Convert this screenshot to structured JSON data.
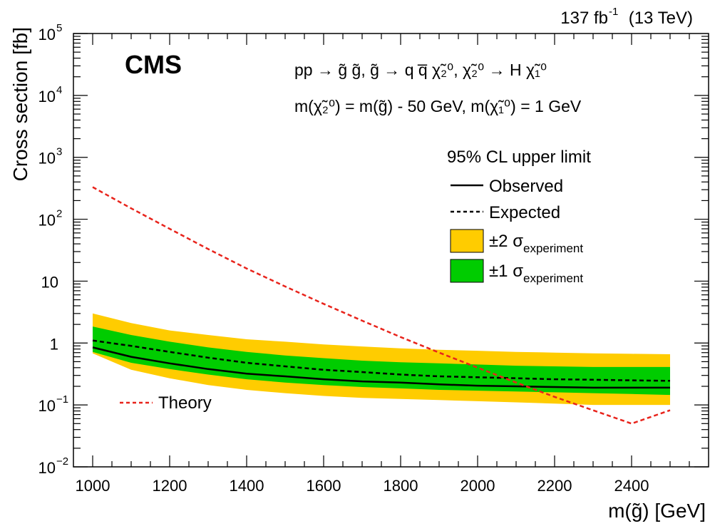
{
  "chart_data": {
    "type": "line",
    "lumi_label": "137 fb",
    "lumi_exponent": "-1",
    "energy_label": "(13 TeV)",
    "experiment_label": "CMS",
    "process_line1": "pp → g̃ g̃,  g̃ → q q̅ χ̃₂⁰,  χ̃₂⁰ → H χ̃₁⁰",
    "process_line2": "m(χ̃₂⁰) = m(g̃) - 50 GeV, m(χ̃₁⁰) = 1 GeV",
    "xlabel": "m(g̃) [GeV]",
    "ylabel": "Cross section [fb]",
    "xlim": [
      950,
      2600
    ],
    "ylim": [
      0.01,
      100000
    ],
    "yscale": "log",
    "grid": false,
    "x_ticks": [
      1000,
      1200,
      1400,
      1600,
      1800,
      2000,
      2200,
      2400
    ],
    "y_ticks": [
      {
        "value": 0.01,
        "base": "10",
        "exp": "−2"
      },
      {
        "value": 0.1,
        "base": "10",
        "exp": "−1"
      },
      {
        "value": 1,
        "base": "1",
        "exp": ""
      },
      {
        "value": 10,
        "base": "10",
        "exp": ""
      },
      {
        "value": 100,
        "base": "10",
        "exp": "2"
      },
      {
        "value": 1000,
        "base": "10",
        "exp": "3"
      },
      {
        "value": 10000,
        "base": "10",
        "exp": "4"
      },
      {
        "value": 100000,
        "base": "10",
        "exp": "5"
      }
    ],
    "x": [
      1000,
      1100,
      1200,
      1300,
      1400,
      1500,
      1600,
      1700,
      1800,
      1900,
      2000,
      2100,
      2200,
      2300,
      2400,
      2500
    ],
    "series": [
      {
        "name": "Observed",
        "style": "solid",
        "color": "#000000",
        "values": [
          0.85,
          0.6,
          0.47,
          0.38,
          0.32,
          0.29,
          0.26,
          0.24,
          0.23,
          0.215,
          0.205,
          0.2,
          0.195,
          0.19,
          0.19,
          0.19
        ]
      },
      {
        "name": "Expected",
        "style": "dashed",
        "color": "#000000",
        "values": [
          1.1,
          0.9,
          0.72,
          0.58,
          0.48,
          0.42,
          0.37,
          0.34,
          0.31,
          0.29,
          0.28,
          0.27,
          0.26,
          0.255,
          0.25,
          0.245
        ]
      },
      {
        "name": "Theory",
        "style": "dashed",
        "color": "#e8241c",
        "values": [
          330,
          150,
          70,
          33,
          16,
          8.2,
          4.3,
          2.3,
          1.25,
          0.7,
          0.4,
          0.23,
          0.135,
          0.082,
          0.05,
          0.082
        ]
      }
    ],
    "band_2sigma": {
      "color": "#ffcc00",
      "upper": [
        3.0,
        2.1,
        1.6,
        1.35,
        1.15,
        1.05,
        0.95,
        0.88,
        0.82,
        0.78,
        0.75,
        0.72,
        0.7,
        0.68,
        0.67,
        0.66
      ],
      "lower": [
        0.68,
        0.37,
        0.27,
        0.21,
        0.175,
        0.155,
        0.14,
        0.13,
        0.125,
        0.12,
        0.115,
        0.11,
        0.105,
        0.1,
        0.1,
        0.1
      ]
    },
    "band_1sigma": {
      "color": "#00cc00",
      "upper": [
        1.85,
        1.35,
        1.05,
        0.85,
        0.72,
        0.63,
        0.57,
        0.52,
        0.49,
        0.47,
        0.45,
        0.43,
        0.42,
        0.41,
        0.41,
        0.41
      ],
      "lower": [
        0.72,
        0.48,
        0.38,
        0.31,
        0.26,
        0.23,
        0.21,
        0.195,
        0.185,
        0.175,
        0.17,
        0.165,
        0.16,
        0.155,
        0.15,
        0.145
      ]
    },
    "legend": {
      "placement": "top-right",
      "title": "95% CL upper limit",
      "observed": "Observed",
      "expected": "Expected",
      "band2_prefix": "±2 σ",
      "band1_prefix": "±1 σ",
      "band_subscript": "experiment",
      "theory": "Theory"
    }
  }
}
